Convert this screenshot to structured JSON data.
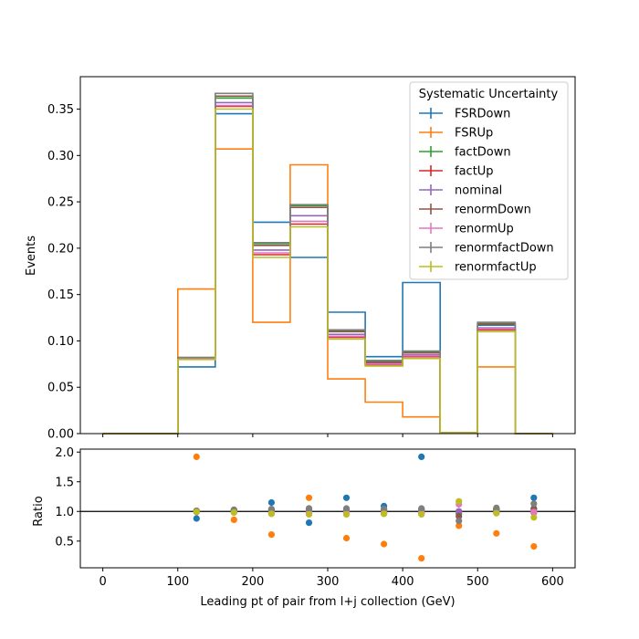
{
  "chart_data": [
    {
      "type": "step",
      "xlabel": "",
      "ylabel": "Events",
      "xlim": [
        -30,
        630
      ],
      "ylim": [
        0,
        0.385
      ],
      "xticks": [
        0,
        100,
        200,
        300,
        400,
        500,
        600
      ],
      "yticks": [
        0.0,
        0.05,
        0.1,
        0.15,
        0.2,
        0.25,
        0.3,
        0.35
      ],
      "ytick_labels": [
        "0.00",
        "0.05",
        "0.10",
        "0.15",
        "0.20",
        "0.25",
        "0.30",
        "0.35"
      ],
      "bin_edges": [
        0,
        50,
        100,
        150,
        200,
        250,
        300,
        350,
        400,
        450,
        500,
        550,
        600
      ],
      "legend": {
        "title": "Systematic Uncertainty",
        "placement": "upper right"
      },
      "series": [
        {
          "name": "FSRDown",
          "color": "#1f77b4",
          "values": [
            0,
            0,
            0.072,
            0.345,
            0.228,
            0.19,
            0.131,
            0.083,
            0.163,
            0.001,
            0.117,
            0,
            0
          ]
        },
        {
          "name": "FSRUp",
          "color": "#ff7f0e",
          "values": [
            0,
            0,
            0.156,
            0.307,
            0.12,
            0.29,
            0.059,
            0.034,
            0.018,
            0.001,
            0.072,
            0,
            0
          ]
        },
        {
          "name": "factDown",
          "color": "#2ca02c",
          "values": [
            0,
            0,
            0.082,
            0.362,
            0.205,
            0.246,
            0.111,
            0.078,
            0.088,
            0.001,
            0.119,
            0,
            0
          ]
        },
        {
          "name": "factUp",
          "color": "#d62728",
          "values": [
            0,
            0,
            0.081,
            0.353,
            0.193,
            0.226,
            0.104,
            0.074,
            0.083,
            0.001,
            0.112,
            0,
            0
          ]
        },
        {
          "name": "nominal",
          "color": "#9467bd",
          "values": [
            0,
            0,
            0.081,
            0.357,
            0.198,
            0.235,
            0.107,
            0.076,
            0.085,
            0.001,
            0.114,
            0,
            0
          ]
        },
        {
          "name": "renormDown",
          "color": "#8c564b",
          "values": [
            0,
            0,
            0.082,
            0.364,
            0.203,
            0.244,
            0.11,
            0.077,
            0.087,
            0.001,
            0.118,
            0,
            0
          ]
        },
        {
          "name": "renormUp",
          "color": "#e377c2",
          "values": [
            0,
            0,
            0.081,
            0.354,
            0.195,
            0.229,
            0.105,
            0.075,
            0.084,
            0.001,
            0.113,
            0,
            0
          ]
        },
        {
          "name": "renormfactDown",
          "color": "#7f7f7f",
          "values": [
            0,
            0,
            0.082,
            0.367,
            0.206,
            0.247,
            0.112,
            0.079,
            0.089,
            0.001,
            0.12,
            0,
            0
          ]
        },
        {
          "name": "renormfactUp",
          "color": "#bcbd22",
          "values": [
            0,
            0,
            0.08,
            0.35,
            0.19,
            0.223,
            0.102,
            0.073,
            0.081,
            0.001,
            0.11,
            0,
            0
          ]
        }
      ]
    },
    {
      "type": "scatter",
      "xlabel": "Leading pt of pair from l+j collection (GeV)",
      "ylabel": "Ratio",
      "xlim": [
        -30,
        630
      ],
      "ylim": [
        0.05,
        2.05
      ],
      "xticks": [
        0,
        100,
        200,
        300,
        400,
        500,
        600
      ],
      "xtick_labels": [
        "0",
        "100",
        "200",
        "300",
        "400",
        "500",
        "600"
      ],
      "yticks": [
        0.5,
        1.0,
        1.5,
        2.0
      ],
      "ytick_labels": [
        "0.5",
        "1.0",
        "1.5",
        "2.0"
      ],
      "reference_line": 1.0,
      "x": [
        125,
        175,
        225,
        275,
        325,
        375,
        425,
        475,
        525,
        575
      ],
      "series": [
        {
          "name": "FSRDown",
          "color": "#1f77b4",
          "values": [
            0.88,
            1.0,
            1.15,
            0.81,
            1.23,
            1.09,
            1.92,
            1.0,
            1.03,
            1.23
          ]
        },
        {
          "name": "FSRUp",
          "color": "#ff7f0e",
          "values": [
            1.92,
            0.86,
            0.61,
            1.23,
            0.55,
            0.45,
            0.21,
            0.76,
            0.63,
            0.41
          ]
        },
        {
          "name": "factDown",
          "color": "#2ca02c",
          "values": [
            1.0,
            1.02,
            1.03,
            1.05,
            1.04,
            1.03,
            1.04,
            0.96,
            1.04,
            1.05
          ]
        },
        {
          "name": "factUp",
          "color": "#d62728",
          "values": [
            1.0,
            0.99,
            0.97,
            0.96,
            0.97,
            0.97,
            0.97,
            1.0,
            0.98,
            0.98
          ]
        },
        {
          "name": "nominal",
          "color": "#9467bd",
          "values": [
            1.0,
            1.0,
            1.0,
            1.0,
            1.0,
            1.0,
            1.0,
            1.0,
            1.0,
            1.0
          ]
        },
        {
          "name": "renormDown",
          "color": "#8c564b",
          "values": [
            1.01,
            1.02,
            1.03,
            1.04,
            1.03,
            1.02,
            1.03,
            0.92,
            1.04,
            1.04
          ]
        },
        {
          "name": "renormUp",
          "color": "#e377c2",
          "values": [
            0.99,
            0.99,
            0.98,
            0.97,
            0.98,
            0.98,
            0.98,
            1.12,
            0.98,
            0.99
          ]
        },
        {
          "name": "renormfactDown",
          "color": "#7f7f7f",
          "values": [
            1.01,
            1.03,
            1.04,
            1.05,
            1.05,
            1.04,
            1.05,
            0.84,
            1.06,
            1.13
          ]
        },
        {
          "name": "renormfactUp",
          "color": "#bcbd22",
          "values": [
            0.99,
            0.98,
            0.96,
            0.95,
            0.95,
            0.96,
            0.95,
            1.17,
            0.97,
            0.9
          ]
        }
      ]
    }
  ]
}
